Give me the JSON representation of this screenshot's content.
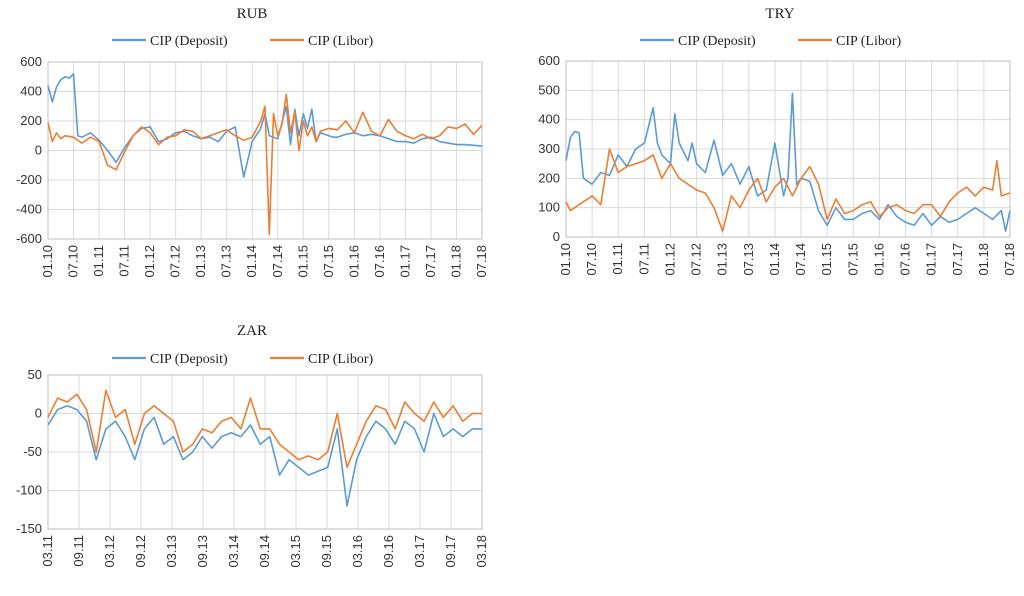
{
  "colors": {
    "deposit": "#5b9bd5",
    "libor": "#ed7d31"
  },
  "chart_data": [
    {
      "id": "rub",
      "type": "line",
      "title": "RUB",
      "legend": [
        "CIP (Deposit)",
        "CIP (Libor)"
      ],
      "ylim": [
        -600,
        600
      ],
      "yticks": [
        600,
        400,
        200,
        0,
        -200,
        -400,
        -600
      ],
      "xlim": [
        0,
        102
      ],
      "xticks": [
        "01.10",
        "07.10",
        "01.11",
        "07.11",
        "01.12",
        "07.12",
        "01.13",
        "07.13",
        "01.14",
        "07.14",
        "01.15",
        "07.15",
        "01.16",
        "07.16",
        "01.17",
        "07.17",
        "01.18",
        "07.18"
      ],
      "grid": true,
      "series": [
        {
          "name": "CIP (Deposit)",
          "color_key": "deposit",
          "x": [
            0,
            1,
            2,
            3,
            4,
            5,
            6,
            7,
            8,
            10,
            12,
            14,
            16,
            18,
            20,
            22,
            24,
            26,
            28,
            30,
            32,
            34,
            36,
            38,
            40,
            42,
            44,
            46,
            48,
            50,
            51,
            52,
            54,
            56,
            57,
            58,
            59,
            60,
            61,
            62,
            63,
            64,
            65,
            66,
            67,
            68,
            70,
            72,
            74,
            76,
            78,
            80,
            82,
            84,
            86,
            88,
            90,
            92,
            94,
            96,
            98,
            100,
            102
          ],
          "y": [
            440,
            330,
            430,
            480,
            500,
            490,
            520,
            100,
            90,
            120,
            70,
            0,
            -80,
            20,
            100,
            150,
            160,
            60,
            80,
            120,
            130,
            100,
            80,
            90,
            60,
            130,
            160,
            -180,
            60,
            150,
            250,
            100,
            80,
            300,
            40,
            280,
            100,
            250,
            150,
            280,
            60,
            120,
            110,
            100,
            90,
            90,
            110,
            120,
            100,
            110,
            100,
            80,
            60,
            60,
            50,
            80,
            90,
            60,
            50,
            40,
            40,
            35,
            30
          ]
        },
        {
          "name": "CIP (Libor)",
          "color_key": "libor",
          "x": [
            0,
            1,
            2,
            3,
            4,
            6,
            8,
            10,
            12,
            14,
            16,
            18,
            20,
            22,
            24,
            26,
            28,
            30,
            32,
            34,
            36,
            38,
            40,
            42,
            44,
            46,
            48,
            50,
            51,
            52,
            53,
            54,
            55,
            56,
            57,
            58,
            59,
            60,
            61,
            62,
            63,
            64,
            66,
            68,
            70,
            72,
            74,
            76,
            78,
            80,
            82,
            84,
            86,
            88,
            90,
            92,
            94,
            96,
            98,
            100,
            102
          ],
          "y": [
            190,
            60,
            120,
            80,
            100,
            90,
            50,
            90,
            60,
            -100,
            -130,
            -10,
            100,
            160,
            120,
            40,
            90,
            100,
            140,
            130,
            80,
            100,
            120,
            140,
            100,
            70,
            90,
            200,
            300,
            -570,
            250,
            100,
            180,
            380,
            120,
            260,
            0,
            200,
            100,
            160,
            60,
            130,
            150,
            140,
            200,
            120,
            260,
            130,
            100,
            210,
            130,
            100,
            80,
            110,
            80,
            100,
            160,
            150,
            180,
            110,
            170
          ]
        }
      ]
    },
    {
      "id": "try",
      "type": "line",
      "title": "TRY",
      "legend": [
        "CIP (Deposit)",
        "CIP (Libor)"
      ],
      "ylim": [
        0,
        600
      ],
      "yticks": [
        600,
        500,
        400,
        300,
        200,
        100,
        0
      ],
      "xlim": [
        0,
        102
      ],
      "xticks": [
        "01.10",
        "07.10",
        "01.11",
        "07.11",
        "01.12",
        "07.12",
        "01.13",
        "07.13",
        "01.14",
        "07.14",
        "01.15",
        "07.15",
        "01.16",
        "07.16",
        "01.17",
        "07.17",
        "01.18",
        "07.18"
      ],
      "grid": true,
      "series": [
        {
          "name": "CIP (Deposit)",
          "color_key": "deposit",
          "x": [
            0,
            1,
            2,
            3,
            4,
            6,
            8,
            10,
            12,
            14,
            16,
            18,
            20,
            21,
            22,
            24,
            25,
            26,
            28,
            29,
            30,
            32,
            34,
            36,
            38,
            40,
            42,
            44,
            46,
            48,
            50,
            51,
            52,
            53,
            54,
            56,
            58,
            60,
            62,
            64,
            66,
            68,
            70,
            72,
            74,
            76,
            78,
            80,
            82,
            84,
            86,
            88,
            90,
            92,
            94,
            96,
            98,
            100,
            101,
            102
          ],
          "y": [
            260,
            340,
            360,
            355,
            200,
            180,
            220,
            210,
            280,
            240,
            300,
            320,
            440,
            320,
            280,
            250,
            420,
            320,
            260,
            320,
            250,
            220,
            330,
            210,
            250,
            180,
            240,
            140,
            160,
            320,
            140,
            200,
            490,
            180,
            200,
            190,
            90,
            40,
            100,
            60,
            60,
            80,
            90,
            60,
            110,
            70,
            50,
            40,
            80,
            40,
            70,
            50,
            60,
            80,
            100,
            80,
            60,
            90,
            20,
            90
          ]
        },
        {
          "name": "CIP (Libor)",
          "color_key": "libor",
          "x": [
            0,
            1,
            2,
            3,
            4,
            6,
            8,
            10,
            12,
            14,
            16,
            18,
            20,
            22,
            24,
            26,
            28,
            30,
            32,
            34,
            36,
            38,
            40,
            42,
            44,
            46,
            48,
            50,
            52,
            54,
            56,
            58,
            60,
            62,
            64,
            66,
            68,
            70,
            72,
            74,
            76,
            78,
            80,
            82,
            84,
            86,
            88,
            90,
            92,
            94,
            96,
            98,
            99,
            100,
            102
          ],
          "y": [
            120,
            90,
            100,
            110,
            120,
            140,
            110,
            300,
            220,
            240,
            250,
            260,
            280,
            200,
            250,
            200,
            180,
            160,
            150,
            100,
            20,
            140,
            100,
            160,
            200,
            120,
            170,
            200,
            140,
            200,
            240,
            180,
            60,
            130,
            80,
            90,
            110,
            120,
            70,
            100,
            110,
            90,
            80,
            110,
            110,
            70,
            120,
            150,
            170,
            140,
            170,
            160,
            260,
            140,
            150
          ]
        }
      ]
    },
    {
      "id": "zar",
      "type": "line",
      "title": "ZAR",
      "legend": [
        "CIP (Deposit)",
        "CIP (Libor)"
      ],
      "ylim": [
        -150,
        50
      ],
      "yticks": [
        50,
        0,
        -50,
        -100,
        -150
      ],
      "xlim": [
        0,
        90
      ],
      "xticks": [
        "03.11",
        "09.11",
        "03.12",
        "09.12",
        "03.13",
        "09.13",
        "03.14",
        "09.14",
        "03.15",
        "09.15",
        "03.16",
        "09.16",
        "03.17",
        "09.17",
        "03.18"
      ],
      "grid": true,
      "series": [
        {
          "name": "CIP (Deposit)",
          "color_key": "deposit",
          "x": [
            0,
            2,
            4,
            6,
            8,
            10,
            12,
            14,
            16,
            18,
            20,
            22,
            24,
            26,
            28,
            30,
            32,
            34,
            36,
            38,
            40,
            42,
            44,
            46,
            48,
            50,
            52,
            54,
            56,
            58,
            60,
            62,
            64,
            66,
            68,
            70,
            72,
            74,
            76,
            78,
            80,
            82,
            84,
            86,
            88,
            90
          ],
          "y": [
            -15,
            5,
            10,
            5,
            -10,
            -60,
            -20,
            -10,
            -30,
            -60,
            -20,
            -5,
            -40,
            -30,
            -60,
            -50,
            -30,
            -45,
            -30,
            -25,
            -30,
            -15,
            -40,
            -30,
            -80,
            -60,
            -70,
            -80,
            -75,
            -70,
            -20,
            -120,
            -60,
            -30,
            -10,
            -20,
            -40,
            -10,
            -20,
            -50,
            0,
            -30,
            -20,
            -30,
            -20,
            -20
          ]
        },
        {
          "name": "CIP (Libor)",
          "color_key": "libor",
          "x": [
            0,
            2,
            4,
            6,
            8,
            10,
            12,
            14,
            16,
            18,
            20,
            22,
            24,
            26,
            28,
            30,
            32,
            34,
            36,
            38,
            40,
            42,
            44,
            46,
            48,
            50,
            52,
            54,
            56,
            58,
            60,
            62,
            64,
            66,
            68,
            70,
            72,
            74,
            76,
            78,
            80,
            82,
            84,
            86,
            88,
            90
          ],
          "y": [
            -5,
            20,
            15,
            25,
            5,
            -50,
            30,
            -5,
            5,
            -40,
            0,
            10,
            0,
            -10,
            -50,
            -40,
            -20,
            -25,
            -10,
            -5,
            -20,
            20,
            -20,
            -20,
            -40,
            -50,
            -60,
            -55,
            -60,
            -50,
            0,
            -70,
            -40,
            -10,
            10,
            5,
            -20,
            15,
            0,
            -10,
            15,
            -5,
            10,
            -10,
            0,
            0
          ]
        }
      ]
    }
  ]
}
